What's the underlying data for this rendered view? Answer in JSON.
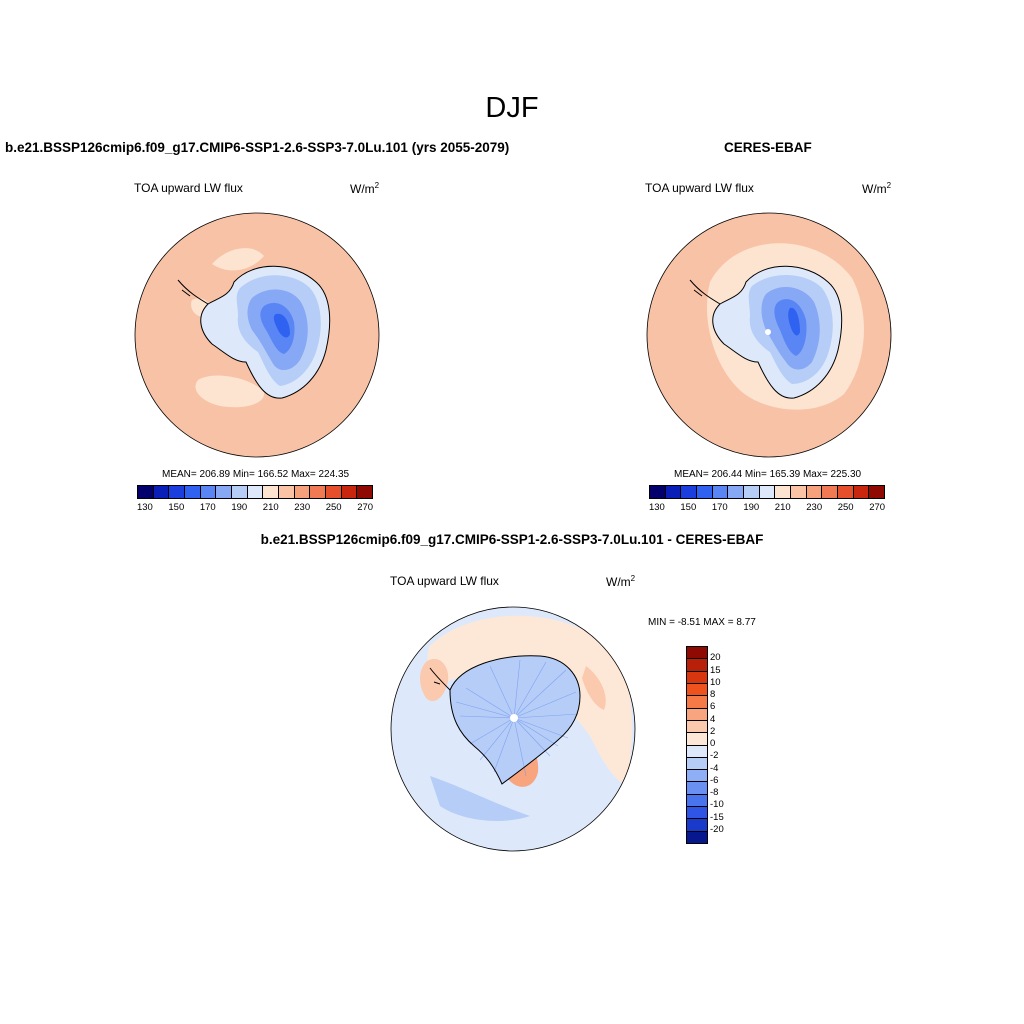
{
  "title": "DJF",
  "panels": {
    "model": {
      "title": "b.e21.BSSP126cmip6.f09_g17.CMIP6-SSP1-2.6-SSP3-7.0Lu.101 (yrs 2055-2079)",
      "variable": "TOA upward LW flux",
      "units_base": "W/m",
      "units_exp": "2",
      "stats": "MEAN= 206.89  Min= 166.52  Max= 224.35"
    },
    "obs": {
      "title": "CERES-EBAF",
      "variable": "TOA upward LW flux",
      "units_base": "W/m",
      "units_exp": "2",
      "stats": "MEAN= 206.44  Min= 165.39  Max= 225.30"
    },
    "diff": {
      "title": "b.e21.BSSP126cmip6.f09_g17.CMIP6-SSP1-2.6-SSP3-7.0Lu.101 - CERES-EBAF",
      "variable": "TOA upward LW flux",
      "units_base": "W/m",
      "units_exp": "2",
      "minmax": "MIN =  -8.51 MAX =   8.77"
    }
  },
  "colorbar_abs": {
    "colors": [
      "#03006e",
      "#0a1fb8",
      "#1a3fde",
      "#2f62f0",
      "#5a86f5",
      "#86a8f5",
      "#b5cdf7",
      "#dde9fb",
      "#fde4d0",
      "#fbc3a6",
      "#f7a07c",
      "#f17a55",
      "#e64f2c",
      "#c8270e",
      "#8f0a02"
    ],
    "labels": [
      "130",
      "150",
      "170",
      "190",
      "210",
      "230",
      "250",
      "270"
    ]
  },
  "colorbar_diff": {
    "colors": [
      "#8f0a02",
      "#b8200a",
      "#d8360f",
      "#f0521e",
      "#f57a48",
      "#f8a47e",
      "#fbcaae",
      "#fde8d8",
      "#dde9fb",
      "#b5cdf7",
      "#8eaef6",
      "#6a90f2",
      "#4a74ee",
      "#2e55e6",
      "#1a3acb",
      "#07188f"
    ],
    "labels": [
      "20",
      "15",
      "10",
      "8",
      "6",
      "4",
      "2",
      "0",
      "-2",
      "-4",
      "-6",
      "-8",
      "-10",
      "-15",
      "-20"
    ]
  },
  "map_colors": {
    "ocean_warm": "#f8c2a6",
    "ocean_light": "#fde4d0",
    "ice_light": "#dde9fb",
    "ice_mid": "#b5cdf7",
    "ice_dark": "#86a8f5",
    "ice_core": "#5a86f5",
    "ice_deep": "#2f62f0",
    "diff_neutral": "#dde9fb",
    "diff_pos1": "#fde8d8",
    "diff_pos2": "#fbcaae",
    "diff_pos3": "#f8a47e",
    "diff_neg1": "#b5cdf7",
    "diff_neg2": "#8eaef6"
  }
}
